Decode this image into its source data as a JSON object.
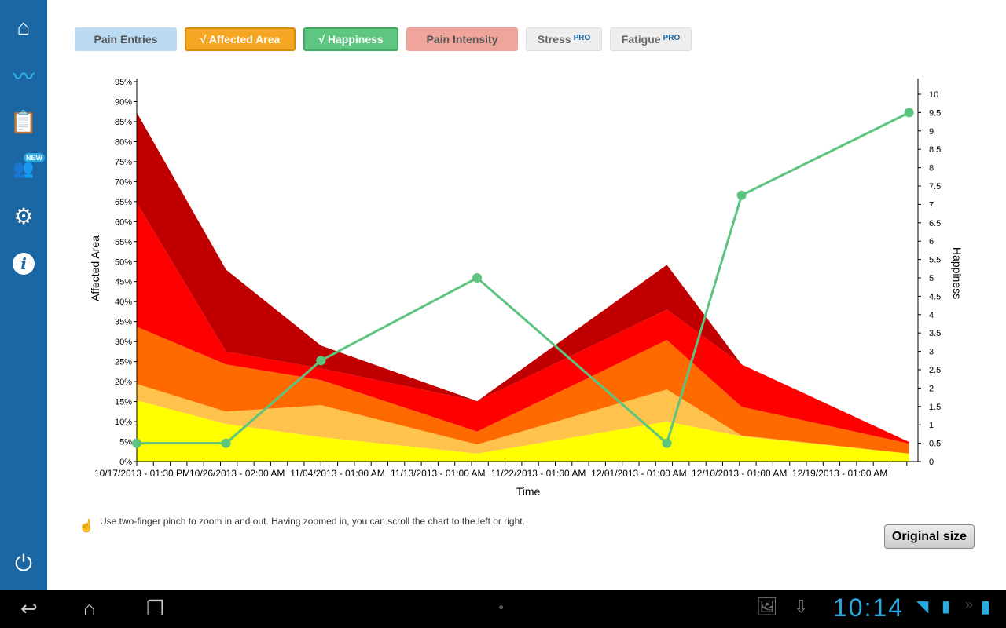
{
  "sidebar": {
    "items": [
      "home",
      "activity",
      "clipboard",
      "users",
      "settings",
      "info"
    ],
    "new_badge": "NEW"
  },
  "toolbar": {
    "pain_entries": "Pain Entries",
    "affected_area": "√ Affected Area",
    "happiness": "√ Happiness",
    "pain_intensity": "Pain Intensity",
    "stress": "Stress",
    "fatigue": "Fatigue",
    "pro": "PRO"
  },
  "colors": {
    "yellow": "#ffff00",
    "light_orange": "#ffc34d",
    "orange": "#ff6a00",
    "red": "#ff0000",
    "dark_red": "#c00000",
    "happiness": "#5dc47f"
  },
  "chart_data": {
    "type": "area",
    "xlabel": "Time",
    "ylabel": "Affected Area",
    "y2label": "Happiness",
    "ylim": [
      0,
      95
    ],
    "y2lim": [
      0,
      10
    ],
    "yticks": [
      "0%",
      "5%",
      "10%",
      "15%",
      "20%",
      "25%",
      "30%",
      "35%",
      "40%",
      "45%",
      "50%",
      "55%",
      "60%",
      "65%",
      "70%",
      "75%",
      "80%",
      "85%",
      "90%",
      "95%"
    ],
    "y2ticks": [
      "0",
      "0.5",
      "1",
      "1.5",
      "2",
      "2.5",
      "3",
      "3.5",
      "4",
      "4.5",
      "5",
      "5.5",
      "6",
      "6.5",
      "7",
      "7.5",
      "8",
      "8.5",
      "9",
      "9.5",
      "10"
    ],
    "xticks": [
      {
        "day": 0,
        "label": "10/17/2013 - 01:30 PM"
      },
      {
        "day": 8.5,
        "label": "10/26/2013 - 02:00 AM"
      },
      {
        "day": 17.5,
        "label": "11/04/2013 - 01:00 AM"
      },
      {
        "day": 26.5,
        "label": "11/13/2013 - 01:00 AM"
      },
      {
        "day": 35.5,
        "label": "11/22/2013 - 01:00 AM"
      },
      {
        "day": 44.5,
        "label": "12/01/2013 - 01:00 AM"
      },
      {
        "day": 53.5,
        "label": "12/10/2013 - 01:00 AM"
      },
      {
        "day": 62.5,
        "label": "12/19/2013 - 01:00 AM"
      }
    ],
    "x_days": [
      0,
      8,
      16.5,
      30.5,
      47.5,
      54.2,
      69.2
    ],
    "area_series": [
      {
        "name": "yellow",
        "values": [
          15.3,
          9.4,
          6.1,
          2,
          10,
          6.3,
          2
        ]
      },
      {
        "name": "light_orange",
        "values": [
          4.1,
          3.1,
          8,
          2.3,
          8,
          0.2,
          0
        ]
      },
      {
        "name": "orange",
        "values": [
          14.3,
          11.8,
          6.3,
          3.2,
          12.4,
          7.2,
          2.5
        ]
      },
      {
        "name": "red",
        "values": [
          31,
          3.2,
          2.9,
          7.6,
          7.6,
          10.6,
          0.4
        ]
      },
      {
        "name": "dark_red",
        "values": [
          22.6,
          20.5,
          5.7,
          0,
          11.2,
          0,
          0
        ]
      }
    ],
    "line_series": {
      "name": "Happiness",
      "values": [
        0.5,
        0.5,
        2.75,
        5,
        0.5,
        7.25,
        9.5
      ]
    }
  },
  "hint": "Use two-finger pinch to zoom in and out. Having zoomed in, you can scroll the chart to the left or right.",
  "original_size": "Original size",
  "status": {
    "time": "10:14"
  }
}
